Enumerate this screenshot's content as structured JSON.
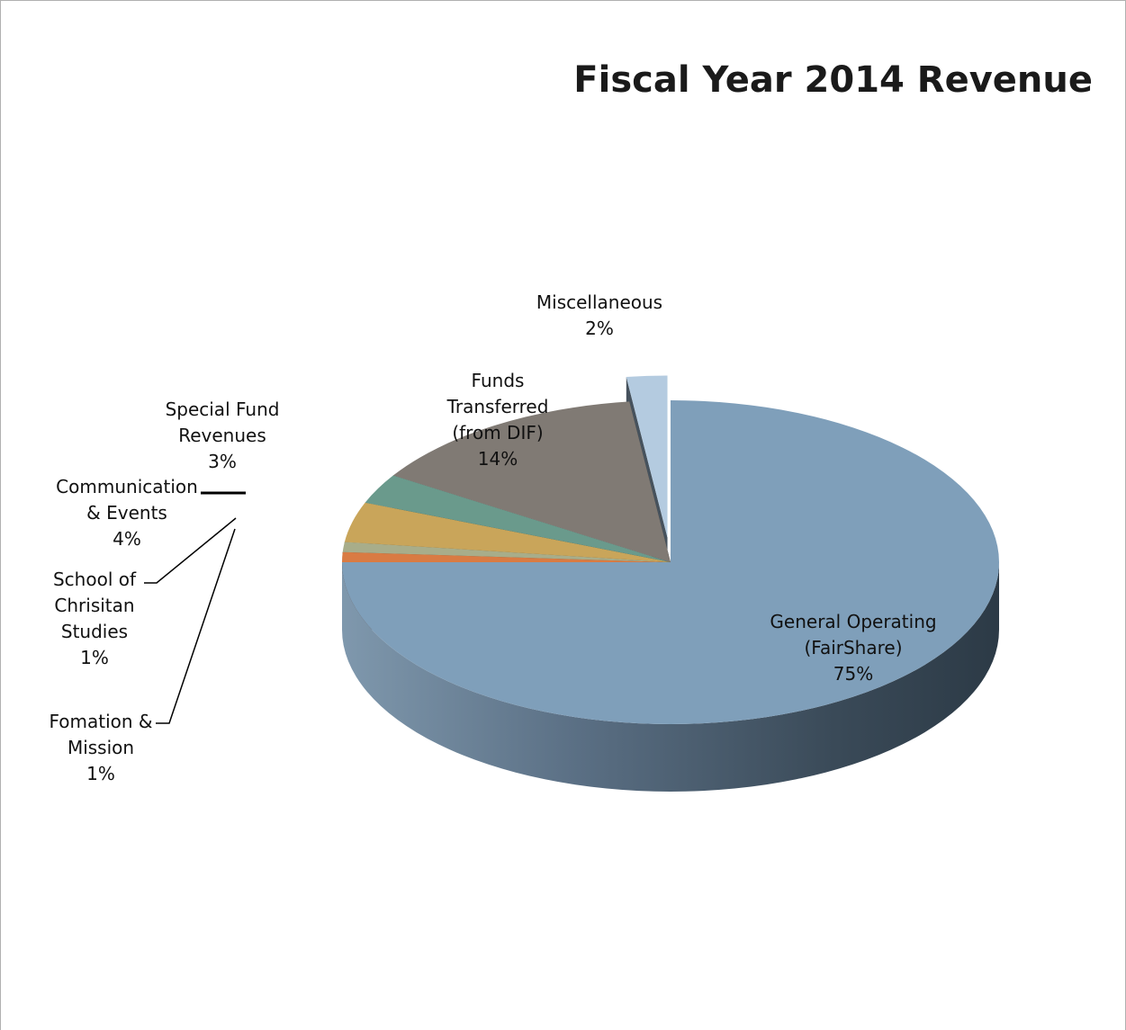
{
  "chart_data": {
    "type": "pie",
    "style": "3d-exploded",
    "title": "Fiscal Year 2014 Revenue",
    "slices": [
      {
        "name": "General Operating (FairShare)",
        "label_lines": [
          "General Operating",
          "(FairShare)"
        ],
        "value": 75,
        "percent_label": "75%",
        "color": "#7f9fba"
      },
      {
        "name": "Fomation & Mission",
        "label_lines": [
          "Fomation &",
          "Mission"
        ],
        "value": 1,
        "percent_label": "1%",
        "color": "#d97b43"
      },
      {
        "name": "School of Chrisitan Studies",
        "label_lines": [
          "School of",
          "Chrisitan",
          "Studies"
        ],
        "value": 1,
        "percent_label": "1%",
        "color": "#a8ad8a"
      },
      {
        "name": "Communication & Events",
        "label_lines": [
          "Communication",
          "& Events"
        ],
        "value": 4,
        "percent_label": "4%",
        "color": "#c9a55a"
      },
      {
        "name": "Special Fund Revenues",
        "label_lines": [
          "Special Fund",
          "Revenues"
        ],
        "value": 3,
        "percent_label": "3%",
        "color": "#6a9a8c"
      },
      {
        "name": "Funds Transferred (from DIF)",
        "label_lines": [
          "Funds",
          "Transferred",
          "(from DIF)"
        ],
        "value": 14,
        "percent_label": "14%",
        "color": "#807a74"
      },
      {
        "name": "Miscellaneous",
        "label_lines": [
          "Miscellaneous"
        ],
        "value": 2,
        "percent_label": "2%",
        "color": "#b4cbe0"
      }
    ],
    "legend": "none",
    "data_labels": "category and percent"
  }
}
